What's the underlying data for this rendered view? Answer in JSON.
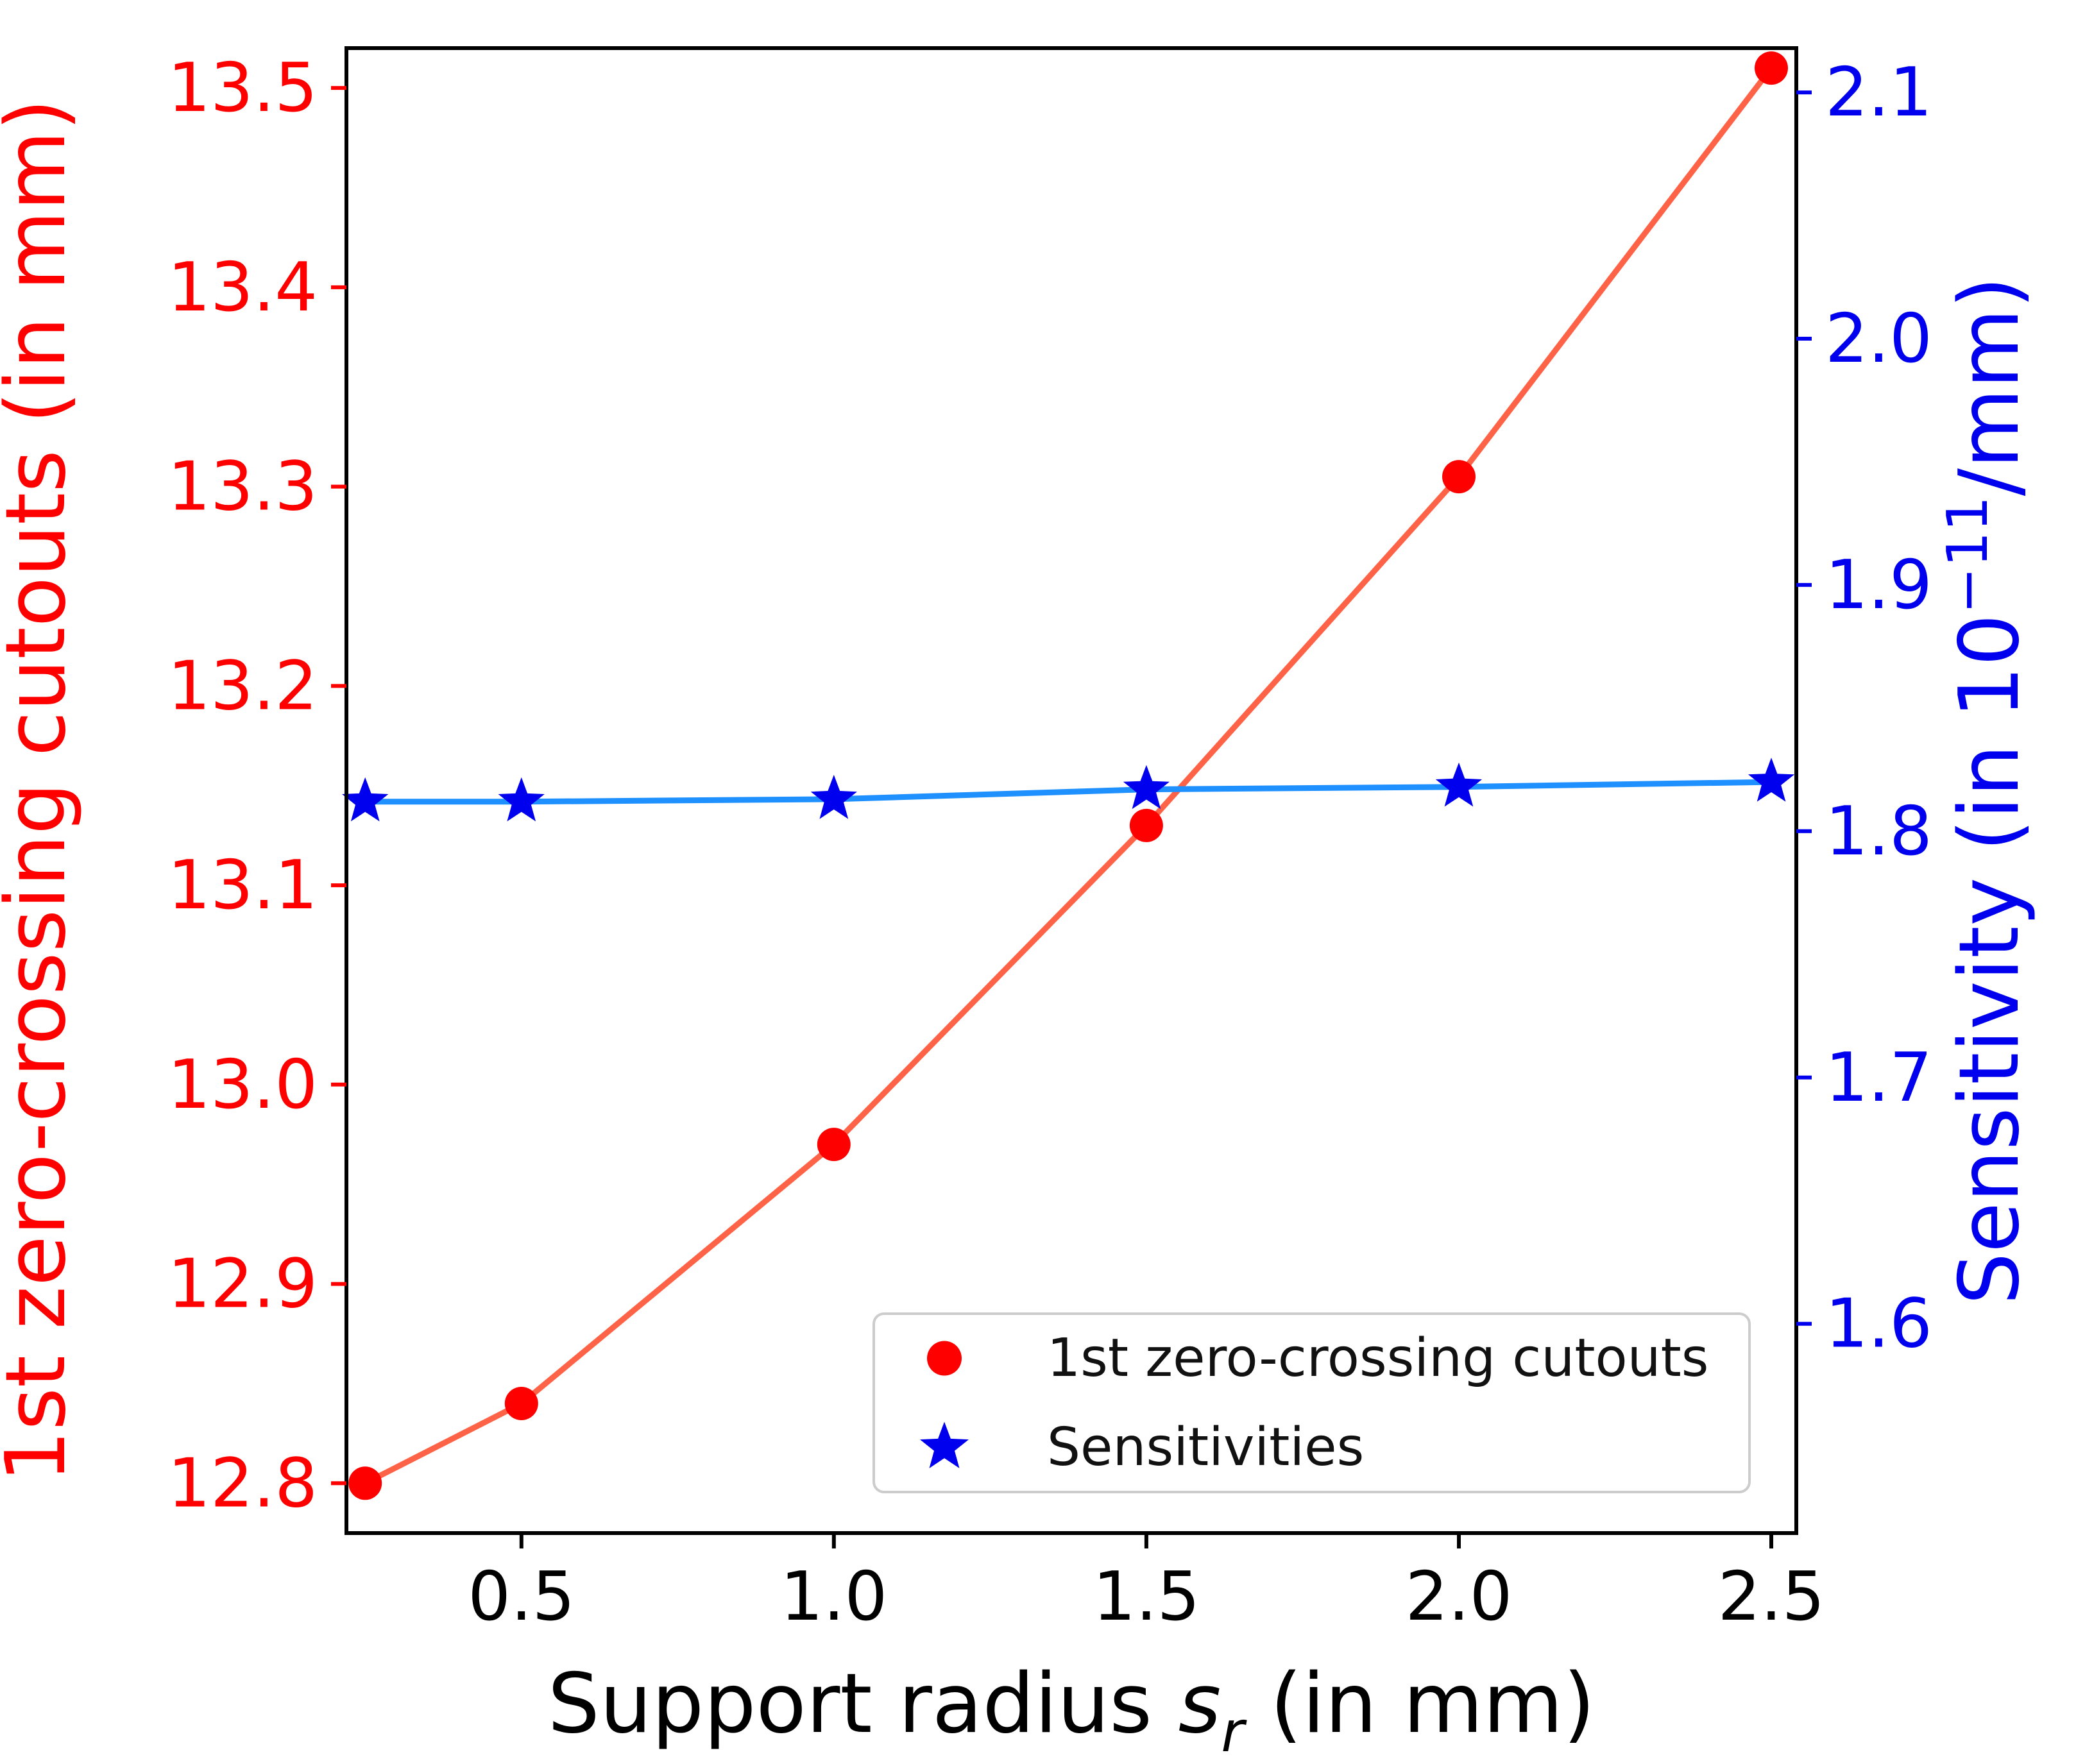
{
  "chart_data": {
    "type": "line",
    "x": [
      0.25,
      0.5,
      1.0,
      1.5,
      2.0,
      2.5
    ],
    "series": [
      {
        "name": "1st zero-crossing cutouts",
        "axis": "left",
        "values": [
          12.8,
          12.84,
          12.97,
          13.13,
          13.305,
          13.51
        ],
        "marker": "circle",
        "marker_color": "#ff0000",
        "line_color": "#ff6347"
      },
      {
        "name": "Sensitivities",
        "axis": "right",
        "values": [
          1.812,
          1.812,
          1.813,
          1.817,
          1.818,
          1.82
        ],
        "marker": "star",
        "marker_color": "#0000ee",
        "line_color": "#1e90ff"
      }
    ],
    "xlabel": {
      "prefix": "Support radius ",
      "var": "s",
      "sub": "r",
      "suffix": " (in mm)"
    },
    "ylabel_left": "1st zero-crossing cutouts (in mm)",
    "ylabel_right": {
      "prefix": "Sensitivity (in 10",
      "sup": "−11",
      "suffix": "/mm)"
    },
    "xlim": [
      0.22,
      2.54
    ],
    "ylim_left": [
      12.775,
      13.52
    ],
    "ylim_right": [
      1.515,
      2.118
    ],
    "xticks": [
      0.5,
      1.0,
      1.5,
      2.0,
      2.5
    ],
    "xtick_labels": [
      "0.5",
      "1.0",
      "1.5",
      "2.0",
      "2.5"
    ],
    "yticks_left": [
      12.8,
      12.9,
      13.0,
      13.1,
      13.2,
      13.3,
      13.4,
      13.5
    ],
    "ytick_labels_left": [
      "12.8",
      "12.9",
      "13.0",
      "13.1",
      "13.2",
      "13.3",
      "13.4",
      "13.5"
    ],
    "yticks_right": [
      1.6,
      1.7,
      1.8,
      1.9,
      2.0,
      2.1
    ],
    "ytick_labels_right": [
      "1.6",
      "1.7",
      "1.8",
      "1.9",
      "2.0",
      "2.1"
    ],
    "grid": false,
    "legend": {
      "position": "lower center-right",
      "items": [
        {
          "label": "1st zero-crossing cutouts",
          "marker": "circle",
          "color": "#ff0000"
        },
        {
          "label": "Sensitivities",
          "marker": "star",
          "color": "#0000ee"
        }
      ]
    },
    "colors": {
      "left_axis": "#ff0000",
      "right_axis": "#0000ee",
      "x_axis": "#000000",
      "spine": "#000000",
      "legend_border": "#cccccc",
      "legend_bg": "#ffffff"
    }
  }
}
